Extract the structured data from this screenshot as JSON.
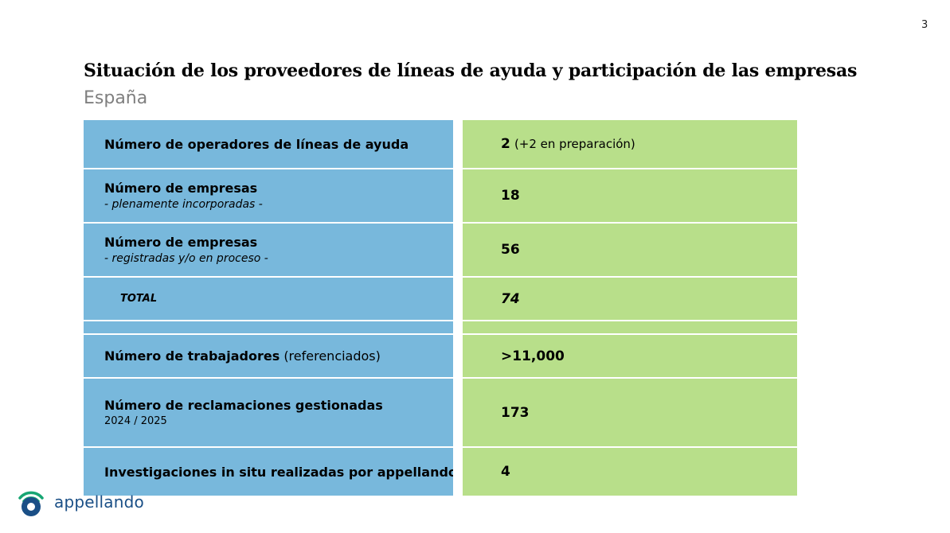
{
  "page_number": "3",
  "title": "Situación de los proveedores de líneas de ayuda y participación de las empresas",
  "subtitle": "España",
  "rows": [
    {
      "label": "Número de operadores de líneas de ayuda",
      "value": "2",
      "value_note": "(+2 en preparación)"
    },
    {
      "label": "Número de empresas",
      "sublabel": "- plenamente incorporadas -",
      "value": "18"
    },
    {
      "label": "Número de empresas",
      "sublabel": "- registradas y/o en proceso -",
      "value": "56"
    },
    {
      "label": "TOTAL",
      "value": "74"
    },
    {
      "label": "Número de trabajadores",
      "label_note": "(referenciados)",
      "value": ">11,000"
    },
    {
      "label": "Número de reclamaciones gestionadas",
      "sublabel": "2024 / 2025",
      "value": "173"
    },
    {
      "label": "Investigaciones in situ realizadas por appellando",
      "value": "4"
    }
  ],
  "logo": {
    "text": "appellando"
  },
  "colors": {
    "label_bg": "#78b8dc",
    "value_bg": "#b8df8a",
    "logo": "#1a4f86"
  }
}
